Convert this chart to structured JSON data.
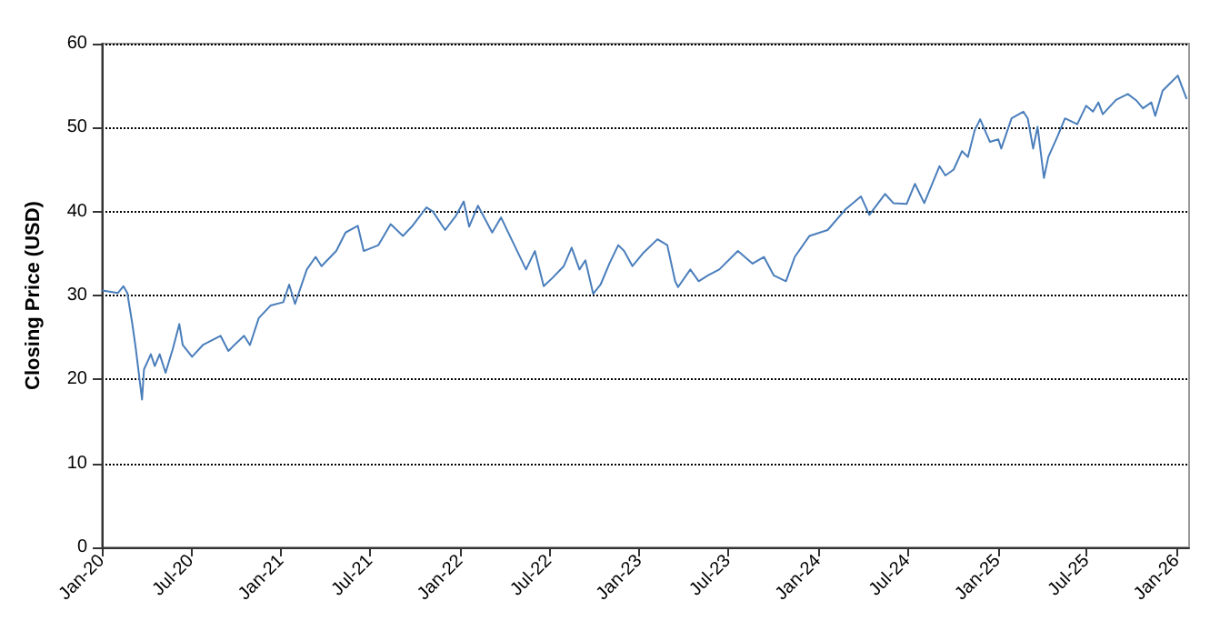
{
  "chart_data": {
    "type": "line",
    "ylabel": "Closing Price (USD)",
    "xlim": [
      "2020-01-01",
      "2026-01-26"
    ],
    "ylim": [
      0,
      60
    ],
    "yticks": [
      0,
      10,
      20,
      30,
      40,
      50,
      60
    ],
    "xticks": [
      {
        "value": "2020-01-01",
        "label": "Jan-20"
      },
      {
        "value": "2020-07-01",
        "label": "Jul-20"
      },
      {
        "value": "2021-01-01",
        "label": "Jan-21"
      },
      {
        "value": "2021-07-01",
        "label": "Jul-21"
      },
      {
        "value": "2022-01-01",
        "label": "Jan-22"
      },
      {
        "value": "2022-07-01",
        "label": "Jul-22"
      },
      {
        "value": "2023-01-01",
        "label": "Jan-23"
      },
      {
        "value": "2023-07-01",
        "label": "Jul-23"
      },
      {
        "value": "2024-01-01",
        "label": "Jan-24"
      },
      {
        "value": "2024-07-01",
        "label": "Jul-24"
      },
      {
        "value": "2025-01-01",
        "label": "Jan-25"
      },
      {
        "value": "2025-07-01",
        "label": "Jul-25"
      },
      {
        "value": "2026-01-01",
        "label": "Jan-26"
      }
    ],
    "grid": "y",
    "marker": "none",
    "line_style": "solid",
    "series": [
      {
        "color": "#4a7ebb",
        "x": [
          "2020-01-02",
          "2020-02-03",
          "2020-02-14",
          "2020-02-22",
          "2020-03-03",
          "2020-03-10",
          "2020-03-23",
          "2020-03-27",
          "2020-04-10",
          "2020-04-18",
          "2020-04-28",
          "2020-05-10",
          "2020-05-25",
          "2020-06-07",
          "2020-06-14",
          "2020-07-03",
          "2020-07-25",
          "2020-08-30",
          "2020-09-15",
          "2020-10-17",
          "2020-10-29",
          "2020-11-16",
          "2020-12-10",
          "2021-01-05",
          "2021-01-17",
          "2021-01-29",
          "2021-02-22",
          "2021-03-12",
          "2021-03-24",
          "2021-04-23",
          "2021-05-12",
          "2021-06-06",
          "2021-06-18",
          "2021-07-18",
          "2021-08-12",
          "2021-09-06",
          "2021-09-24",
          "2021-10-24",
          "2021-11-06",
          "2021-12-01",
          "2021-12-23",
          "2022-01-08",
          "2022-01-19",
          "2022-02-06",
          "2022-03-07",
          "2022-03-25",
          "2022-04-12",
          "2022-05-15",
          "2022-06-02",
          "2022-06-20",
          "2022-07-08",
          "2022-07-31",
          "2022-08-16",
          "2022-09-01",
          "2022-09-13",
          "2022-09-29",
          "2022-10-14",
          "2022-11-01",
          "2022-11-19",
          "2022-12-01",
          "2022-12-18",
          "2023-01-08",
          "2023-02-07",
          "2023-02-27",
          "2023-03-15",
          "2023-03-21",
          "2023-04-15",
          "2023-05-02",
          "2023-05-21",
          "2023-06-13",
          "2023-07-21",
          "2023-08-20",
          "2023-09-12",
          "2023-10-02",
          "2023-10-27",
          "2023-11-14",
          "2023-12-14",
          "2024-01-20",
          "2024-02-26",
          "2024-03-28",
          "2024-04-14",
          "2024-05-16",
          "2024-06-02",
          "2024-06-29",
          "2024-07-16",
          "2024-08-04",
          "2024-09-04",
          "2024-09-16",
          "2024-10-03",
          "2024-10-20",
          "2024-11-01",
          "2024-11-15",
          "2024-11-26",
          "2024-12-16",
          "2025-01-02",
          "2025-01-08",
          "2025-01-29",
          "2025-02-22",
          "2025-03-03",
          "2025-03-14",
          "2025-03-23",
          "2025-04-05",
          "2025-04-14",
          "2025-05-03",
          "2025-05-18",
          "2025-06-12",
          "2025-06-30",
          "2025-07-14",
          "2025-07-25",
          "2025-08-03",
          "2025-08-30",
          "2025-09-23",
          "2025-10-11",
          "2025-10-24",
          "2025-11-10",
          "2025-11-18",
          "2025-12-03",
          "2025-12-17",
          "2026-01-03",
          "2026-01-21"
        ],
        "values": [
          30.6,
          30.3,
          31.1,
          30.3,
          26.7,
          23.8,
          17.6,
          21.2,
          23.0,
          21.6,
          23.0,
          20.8,
          23.7,
          26.6,
          24.1,
          22.7,
          24.1,
          25.2,
          23.4,
          25.2,
          24.1,
          27.3,
          28.8,
          29.2,
          31.3,
          29.0,
          33.1,
          34.6,
          33.5,
          35.3,
          37.5,
          38.3,
          35.3,
          36.0,
          38.5,
          37.1,
          38.2,
          40.5,
          40.0,
          37.8,
          39.5,
          41.2,
          38.2,
          40.7,
          37.5,
          39.3,
          37.1,
          33.1,
          35.3,
          31.1,
          32.1,
          33.5,
          35.7,
          33.1,
          34.2,
          30.2,
          31.3,
          33.8,
          36.0,
          35.3,
          33.5,
          35.0,
          36.7,
          36.0,
          31.7,
          31.0,
          33.1,
          31.7,
          32.4,
          33.1,
          35.3,
          33.8,
          34.6,
          32.4,
          31.7,
          34.6,
          37.1,
          37.8,
          40.3,
          41.8,
          39.6,
          42.1,
          41.0,
          40.9,
          43.3,
          41.0,
          45.4,
          44.3,
          45.0,
          47.2,
          46.5,
          49.7,
          51.0,
          48.3,
          48.6,
          47.5,
          51.1,
          51.9,
          51.1,
          47.5,
          50.1,
          44.0,
          46.5,
          49.0,
          51.1,
          50.4,
          52.6,
          51.9,
          53.0,
          51.6,
          53.3,
          54.0,
          53.2,
          52.3,
          53.0,
          51.4,
          54.4,
          55.2,
          56.2,
          53.4
        ]
      }
    ]
  }
}
